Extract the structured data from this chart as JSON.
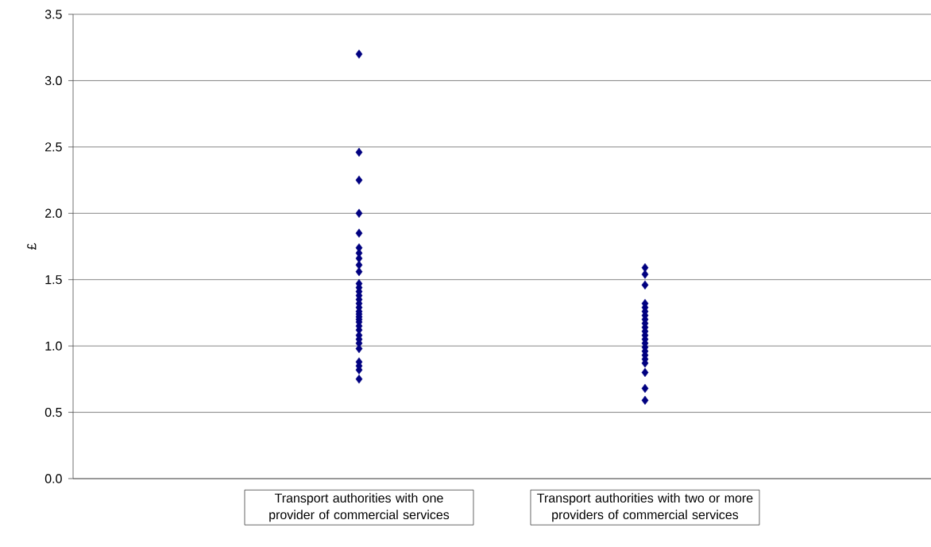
{
  "chart_data": {
    "type": "scatter",
    "ylabel": "£",
    "categories": [
      "Transport authorities with one provider of commercial services",
      "Transport authorities with two or more providers of commercial services"
    ],
    "series": [
      {
        "color": "#000080",
        "x": [
          "Transport authorities with one provider of commercial services",
          "Transport authorities with one provider of commercial services",
          "Transport authorities with one provider of commercial services",
          "Transport authorities with one provider of commercial services",
          "Transport authorities with one provider of commercial services",
          "Transport authorities with one provider of commercial services",
          "Transport authorities with one provider of commercial services",
          "Transport authorities with one provider of commercial services",
          "Transport authorities with one provider of commercial services",
          "Transport authorities with one provider of commercial services",
          "Transport authorities with one provider of commercial services",
          "Transport authorities with one provider of commercial services",
          "Transport authorities with one provider of commercial services",
          "Transport authorities with one provider of commercial services",
          "Transport authorities with one provider of commercial services",
          "Transport authorities with one provider of commercial services",
          "Transport authorities with one provider of commercial services",
          "Transport authorities with one provider of commercial services",
          "Transport authorities with one provider of commercial services",
          "Transport authorities with one provider of commercial services",
          "Transport authorities with one provider of commercial services",
          "Transport authorities with one provider of commercial services",
          "Transport authorities with one provider of commercial services",
          "Transport authorities with one provider of commercial services",
          "Transport authorities with one provider of commercial services",
          "Transport authorities with one provider of commercial services",
          "Transport authorities with one provider of commercial services",
          "Transport authorities with one provider of commercial services",
          "Transport authorities with one provider of commercial services",
          "Transport authorities with one provider of commercial services",
          "Transport authorities with one provider of commercial services",
          "Transport authorities with one provider of commercial services"
        ],
        "values": [
          3.2,
          2.46,
          2.25,
          2.0,
          1.85,
          1.74,
          1.7,
          1.66,
          1.61,
          1.56,
          1.47,
          1.44,
          1.41,
          1.38,
          1.35,
          1.32,
          1.29,
          1.26,
          1.24,
          1.22,
          1.2,
          1.18,
          1.15,
          1.12,
          1.08,
          1.05,
          1.02,
          0.98,
          0.88,
          0.85,
          0.82,
          0.75
        ]
      },
      {
        "color": "#000080",
        "x": [
          "Transport authorities with two or more providers of commercial services",
          "Transport authorities with two or more providers of commercial services",
          "Transport authorities with two or more providers of commercial services",
          "Transport authorities with two or more providers of commercial services",
          "Transport authorities with two or more providers of commercial services",
          "Transport authorities with two or more providers of commercial services",
          "Transport authorities with two or more providers of commercial services",
          "Transport authorities with two or more providers of commercial services",
          "Transport authorities with two or more providers of commercial services",
          "Transport authorities with two or more providers of commercial services",
          "Transport authorities with two or more providers of commercial services",
          "Transport authorities with two or more providers of commercial services",
          "Transport authorities with two or more providers of commercial services",
          "Transport authorities with two or more providers of commercial services",
          "Transport authorities with two or more providers of commercial services",
          "Transport authorities with two or more providers of commercial services",
          "Transport authorities with two or more providers of commercial services",
          "Transport authorities with two or more providers of commercial services",
          "Transport authorities with two or more providers of commercial services",
          "Transport authorities with two or more providers of commercial services",
          "Transport authorities with two or more providers of commercial services",
          "Transport authorities with two or more providers of commercial services"
        ],
        "values": [
          1.59,
          1.54,
          1.46,
          1.32,
          1.29,
          1.26,
          1.23,
          1.2,
          1.17,
          1.14,
          1.11,
          1.08,
          1.05,
          1.02,
          0.99,
          0.96,
          0.93,
          0.9,
          0.87,
          0.8,
          0.68,
          0.59
        ]
      }
    ],
    "ylim": [
      0,
      3.5
    ],
    "yticks": [
      {
        "value": 0,
        "label": "0.0"
      },
      {
        "value": 0.5,
        "label": "0.5"
      },
      {
        "value": 1,
        "label": "1.0"
      },
      {
        "value": 1.5,
        "label": "1.5"
      },
      {
        "value": 2,
        "label": "2.0"
      },
      {
        "value": 2.5,
        "label": "2.5"
      },
      {
        "value": 3,
        "label": "3.0"
      },
      {
        "value": 3.5,
        "label": "3.5"
      }
    ],
    "grid": "y",
    "marker": "diamond"
  }
}
